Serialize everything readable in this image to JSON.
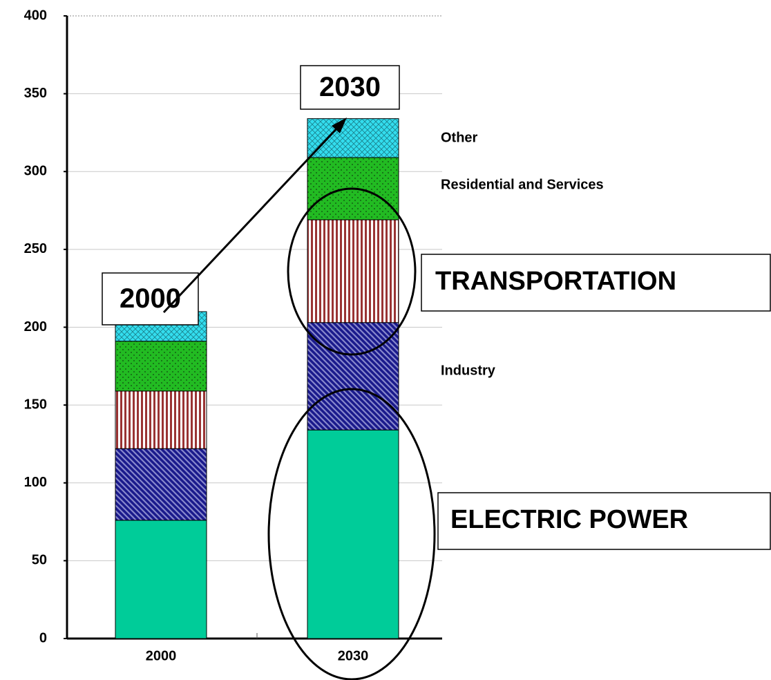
{
  "chart_data": {
    "type": "bar",
    "stacked": true,
    "categories": [
      "2000",
      "2030"
    ],
    "series": [
      {
        "name": "ELECTRIC POWER",
        "color": "#00cc99",
        "values": [
          76,
          134
        ]
      },
      {
        "name": "Industry",
        "color": "#1a1a8c",
        "values": [
          46,
          69
        ]
      },
      {
        "name": "TRANSPORTATION",
        "color": "#993333",
        "values": [
          37,
          66
        ]
      },
      {
        "name": "Residential and Services",
        "color": "#22bb22",
        "values": [
          32,
          40
        ]
      },
      {
        "name": "Other",
        "color": "#33ddee",
        "values": [
          19,
          25
        ]
      }
    ],
    "annotations": [
      "2000",
      "2030"
    ],
    "ylim": [
      0,
      400
    ],
    "yticks": [
      0,
      50,
      100,
      150,
      200,
      250,
      300,
      350,
      400
    ],
    "grid": true
  }
}
